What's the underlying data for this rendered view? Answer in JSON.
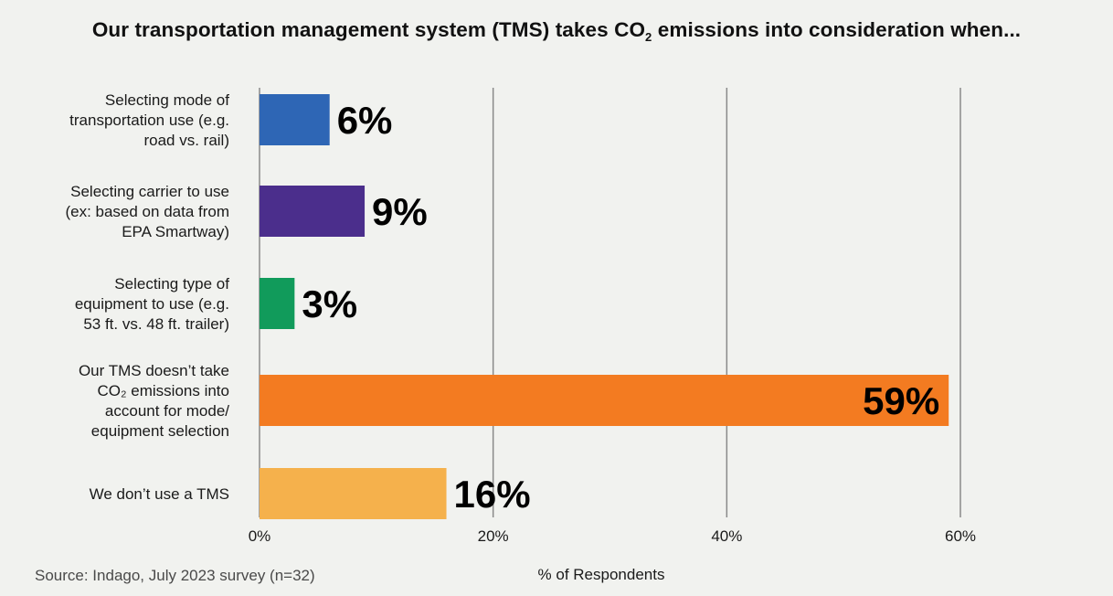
{
  "chart_data": {
    "type": "bar",
    "orientation": "horizontal",
    "title_prefix": "Our transportation management system (TMS) takes CO",
    "title_sub": "2",
    "title_suffix": " emissions into consideration when...",
    "categories": [
      [
        "Selecting mode of",
        "transportation use (e.g.",
        "road vs. rail)"
      ],
      [
        "Selecting carrier to use",
        "(ex: based on data from",
        "EPA Smartway)"
      ],
      [
        "Selecting type of",
        "equipment to use (e.g.",
        "53 ft. vs. 48 ft. trailer)"
      ],
      [
        "Our TMS doesn’t take",
        "CO₂ emissions into",
        "account for mode/",
        "equipment selection"
      ],
      [
        "We don’t use a TMS"
      ]
    ],
    "values": [
      6,
      9,
      3,
      59,
      16
    ],
    "value_labels": [
      "6%",
      "9%",
      "3%",
      "59%",
      "16%"
    ],
    "colors": [
      "#2e66b5",
      "#4b2e8c",
      "#119b5b",
      "#f37b21",
      "#f5b14c"
    ],
    "xlim": [
      0,
      60
    ],
    "xticks": [
      0,
      20,
      40,
      60
    ],
    "xtick_labels": [
      "0%",
      "20%",
      "40%",
      "60%"
    ],
    "xlabel": "% of Respondents",
    "grid": true
  },
  "source": "Source: Indago, July 2023 survey (n=32)"
}
